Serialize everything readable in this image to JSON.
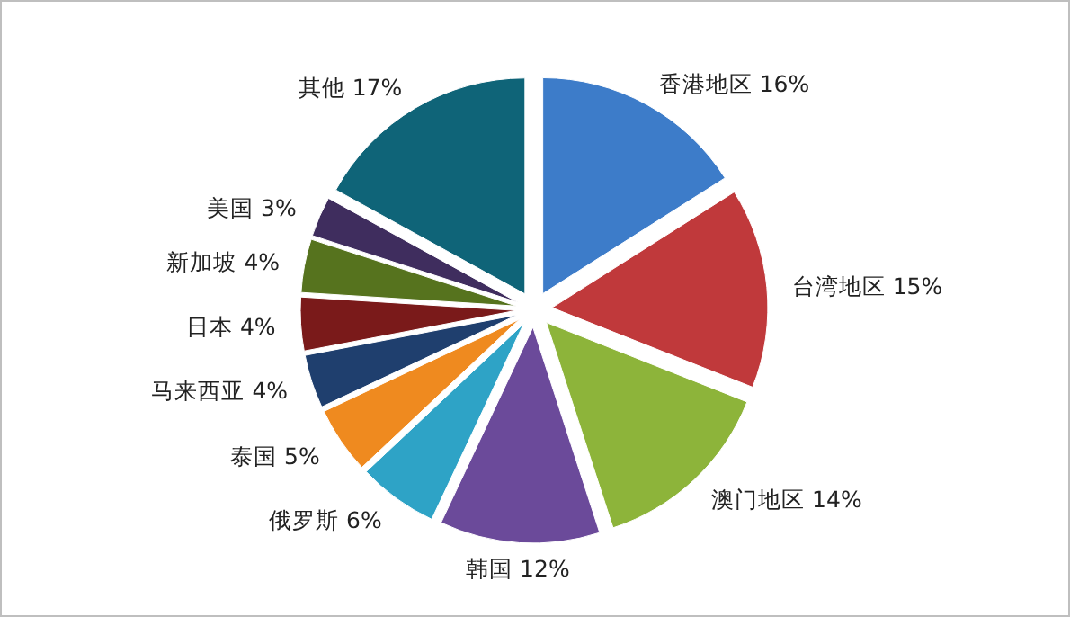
{
  "chart_data": {
    "type": "pie",
    "categories": [
      "香港地区",
      "台湾地区",
      "澳门地区",
      "韩国",
      "俄罗斯",
      "泰国",
      "马来西亚",
      "日本",
      "新加坡",
      "美国",
      "其他"
    ],
    "values": [
      16,
      15,
      14,
      12,
      6,
      5,
      4,
      4,
      4,
      3,
      17
    ],
    "value_labels": [
      "16%",
      "15%",
      "14%",
      "12%",
      "6%",
      "5%",
      "4%",
      "4%",
      "4%",
      "3%",
      "17%"
    ],
    "colors": [
      "#3d7cc9",
      "#c0393b",
      "#8db43a",
      "#6b4a9a",
      "#2ea3c6",
      "#ef8a1f",
      "#1f3f6e",
      "#7a1a1a",
      "#56731e",
      "#3f2d5e",
      "#0f6478"
    ]
  }
}
